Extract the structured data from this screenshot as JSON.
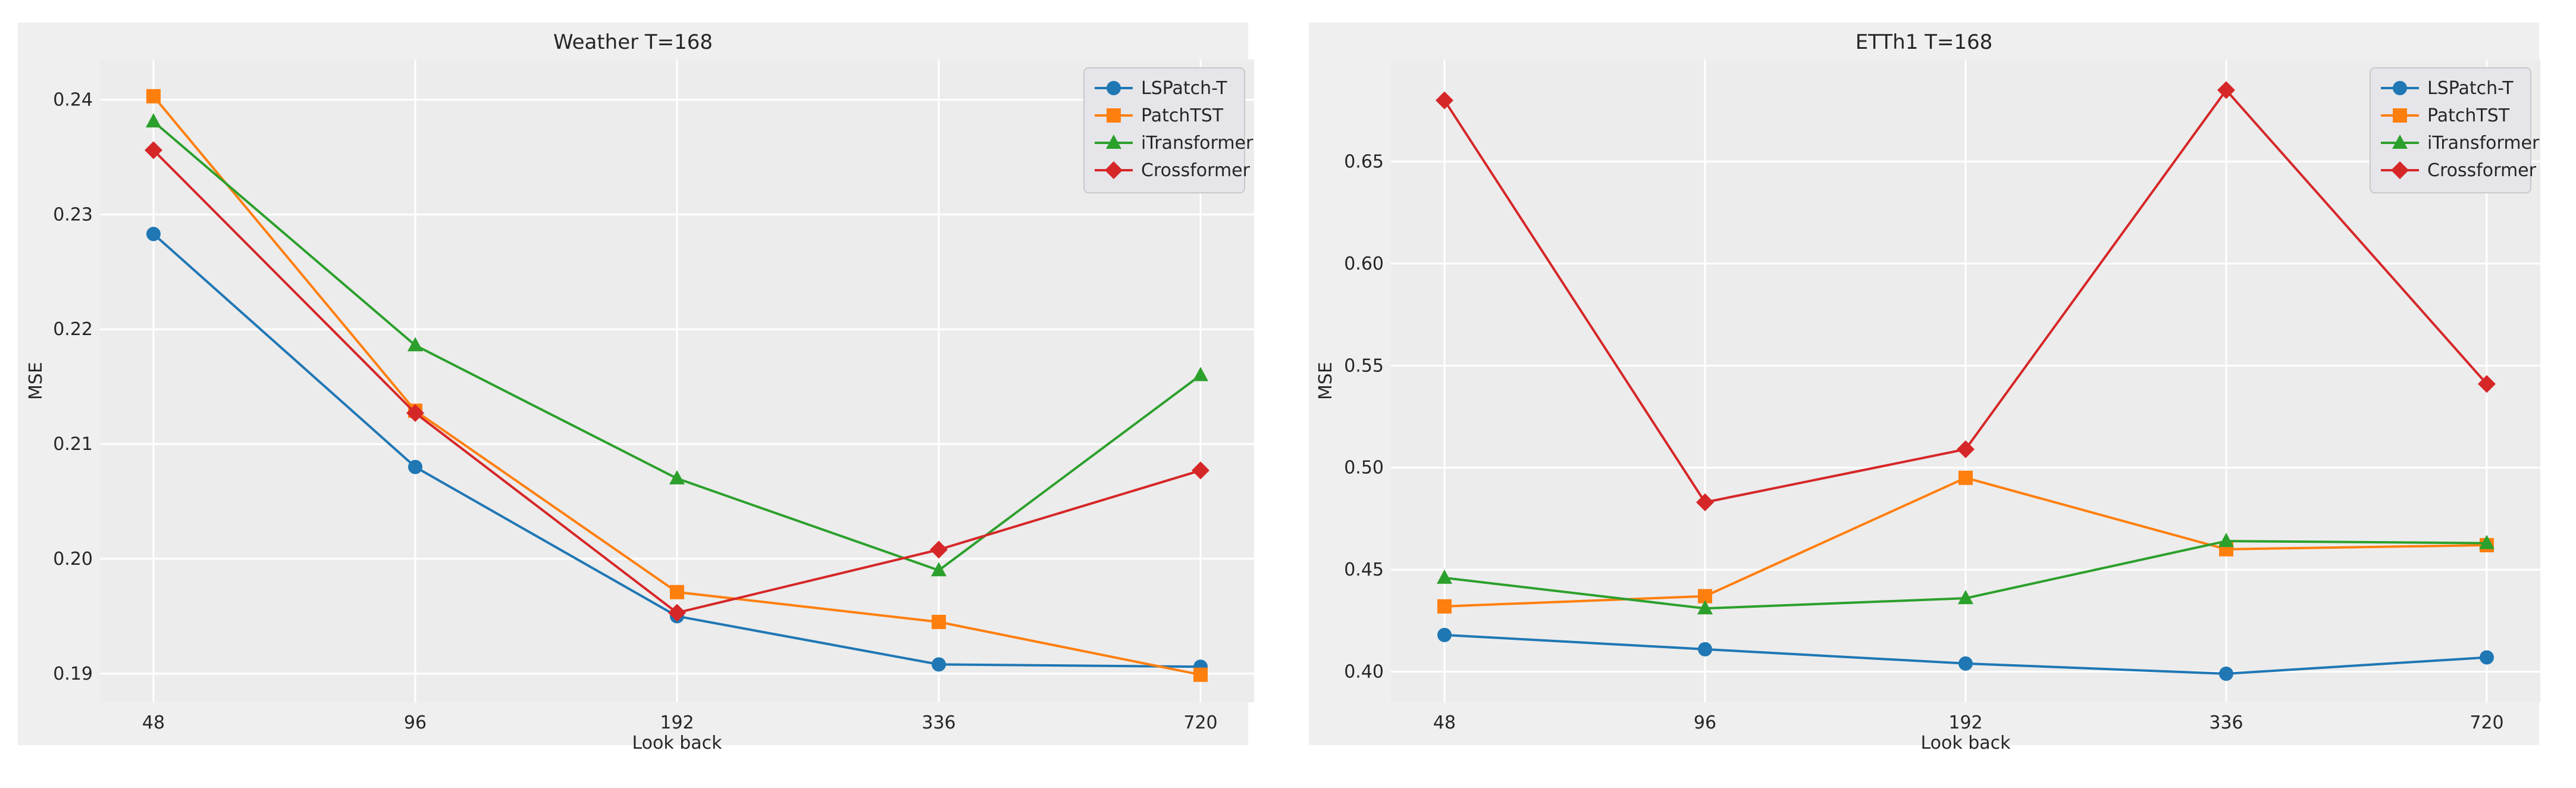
{
  "chart_data": [
    {
      "type": "line",
      "title": "Weather T=168",
      "xlabel": "Look back",
      "ylabel": "MSE",
      "categories": [
        "48",
        "96",
        "192",
        "336",
        "720"
      ],
      "ylim": [
        0.1875,
        0.2435
      ],
      "yticks": [
        0.19,
        0.2,
        0.21,
        0.22,
        0.23,
        0.24
      ],
      "ytick_labels": [
        "0.19",
        "0.20",
        "0.21",
        "0.22",
        "0.23",
        "0.24"
      ],
      "grid": true,
      "legend_position": "top-right",
      "series": [
        {
          "name": "LSPatch-T",
          "color": "#1f77b4",
          "marker": "circle",
          "values": [
            0.2283,
            0.208,
            0.195,
            0.1908,
            0.1906
          ]
        },
        {
          "name": "PatchTST",
          "color": "#ff7f0e",
          "marker": "square",
          "values": [
            0.2403,
            0.2129,
            0.1971,
            0.1945,
            0.1899
          ]
        },
        {
          "name": "iTransformer",
          "color": "#2ca02c",
          "marker": "triangle",
          "values": [
            0.2381,
            0.2186,
            0.207,
            0.199,
            0.216
          ]
        },
        {
          "name": "Crossformer",
          "color": "#d62728",
          "marker": "diamond",
          "values": [
            0.2356,
            0.2127,
            0.1953,
            0.2008,
            0.2077
          ]
        }
      ]
    },
    {
      "type": "line",
      "title": "ETTh1 T=168",
      "xlabel": "Look back",
      "ylabel": "MSE",
      "categories": [
        "48",
        "96",
        "192",
        "336",
        "720"
      ],
      "ylim": [
        0.385,
        0.7
      ],
      "yticks": [
        0.4,
        0.45,
        0.5,
        0.55,
        0.6,
        0.65
      ],
      "ytick_labels": [
        "0.40",
        "0.45",
        "0.50",
        "0.55",
        "0.60",
        "0.65"
      ],
      "grid": true,
      "legend_position": "top-right",
      "series": [
        {
          "name": "LSPatch-T",
          "color": "#1f77b4",
          "marker": "circle",
          "values": [
            0.418,
            0.411,
            0.404,
            0.399,
            0.407
          ]
        },
        {
          "name": "PatchTST",
          "color": "#ff7f0e",
          "marker": "square",
          "values": [
            0.432,
            0.437,
            0.495,
            0.46,
            0.462
          ]
        },
        {
          "name": "iTransformer",
          "color": "#2ca02c",
          "marker": "triangle",
          "values": [
            0.446,
            0.431,
            0.436,
            0.464,
            0.463
          ]
        },
        {
          "name": "Crossformer",
          "color": "#d62728",
          "marker": "diamond",
          "values": [
            0.68,
            0.483,
            0.509,
            0.685,
            0.541
          ]
        }
      ]
    }
  ]
}
